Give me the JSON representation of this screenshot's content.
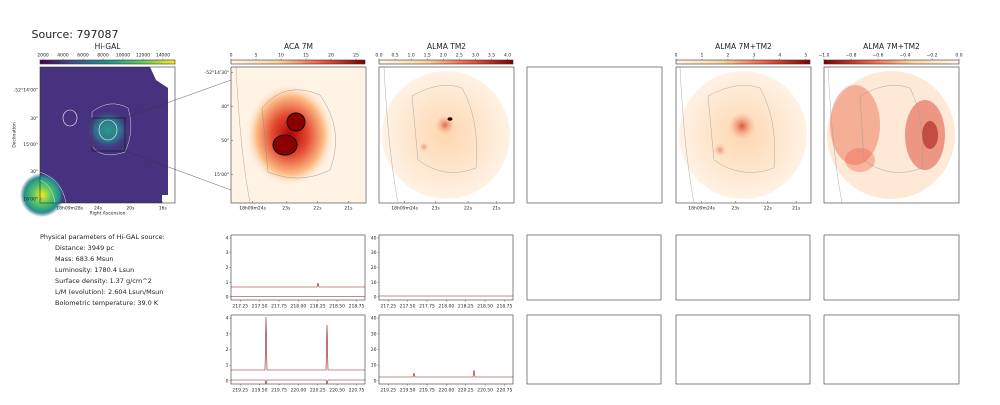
{
  "title": "Source: 797087",
  "maps": [
    {
      "title": "Hi-GAL",
      "clim": [
        1700,
        15200
      ],
      "colorbar_ticks": [
        2000,
        4000,
        6000,
        8000,
        10000,
        12000,
        14000
      ],
      "xticks": [
        "18h09m28s",
        "24s",
        "20s",
        "16s"
      ],
      "yticks": [
        "-52°14'00\"",
        "30\"",
        "15'00\"",
        "30\"",
        "16'00\""
      ],
      "xlabel": "Right Ascension",
      "ylabel": "Declination"
    },
    {
      "title": "ACA 7M",
      "clim": [
        0,
        27
      ],
      "colorbar_ticks": [
        0,
        5,
        10,
        15,
        20,
        25
      ],
      "xticks": [
        "18h09m24s",
        "23s",
        "22s",
        "21s"
      ],
      "yticks": [
        "-52°14'30\"",
        "40\"",
        "50\"",
        "15'00\""
      ]
    },
    {
      "title": "ALMA TM2",
      "clim": [
        0,
        4.2
      ],
      "colorbar_ticks": [
        {
          "value": 0,
          "label": "0.0"
        },
        0.5,
        {
          "value": 1,
          "label": "1.0"
        },
        1.5,
        {
          "value": 2,
          "label": "2.0"
        },
        2.5,
        {
          "value": 3,
          "label": "3.0"
        },
        3.5,
        {
          "value": 4,
          "label": "4.0"
        }
      ],
      "xticks": [
        "18h09m24s",
        "23s",
        "22s",
        "21s"
      ]
    },
    {
      "title": "ALMA 7M+TM2",
      "clim": [
        0,
        5.2
      ],
      "colorbar_ticks": [
        0,
        1,
        2,
        3,
        4,
        5
      ],
      "xticks": [
        "18h09m24s",
        "23s",
        "22s",
        "21s"
      ]
    },
    {
      "title": "ALMA 7M+TM2",
      "clim": [
        -1,
        0
      ],
      "colorbar_ticks": [
        {
          "value": -1,
          "label": "−1.0"
        },
        {
          "value": -0.8,
          "label": "−0.8"
        },
        {
          "value": -0.6,
          "label": "−0.6"
        },
        {
          "value": -0.4,
          "label": "−0.4"
        },
        {
          "value": -0.2,
          "label": "−0.2"
        },
        {
          "value": 0,
          "label": "0.0"
        }
      ]
    }
  ],
  "parameters": {
    "heading": "Physical parameters of Hi-GAL source:",
    "lines": [
      "Distance: 3949 pc",
      "Mass: 683.6 Msun",
      "Luminosity: 1780.4 Lsun",
      "Surface density: 1.37 g/cm^2",
      "L/M (evolution): 2.604 Lsun/Msun",
      "Bolometric temperature: 39.0 K"
    ]
  },
  "spectra": [
    {
      "xlim": [
        217.13,
        218.86
      ],
      "xticks": [
        217.25,
        {
          "value": 217.5,
          "label": "217.50"
        },
        217.75,
        {
          "value": 218,
          "label": "218.00"
        },
        218.25,
        {
          "value": 218.5,
          "label": "218.50"
        },
        218.75
      ],
      "panels": [
        {
          "ylim": [
            -0.2,
            4.2
          ],
          "yticks": [
            0,
            1,
            2,
            3,
            4
          ]
        },
        {
          "ylim": [
            -2,
            42
          ],
          "yticks": [
            0,
            10,
            20,
            30,
            40
          ]
        }
      ]
    },
    {
      "xlim": [
        219.13,
        220.86
      ],
      "xticks": [
        219.25,
        {
          "value": 219.5,
          "label": "219.50"
        },
        219.75,
        {
          "value": 220,
          "label": "220.00"
        },
        220.25,
        {
          "value": 220.5,
          "label": "220.50"
        },
        220.75
      ],
      "panels": [
        {
          "ylim": [
            -0.2,
            4.2
          ],
          "yticks": [
            0,
            1,
            2,
            3,
            4
          ]
        },
        {
          "ylim": [
            -2,
            42
          ],
          "yticks": [
            0,
            10,
            20,
            30,
            40
          ]
        }
      ]
    }
  ]
}
